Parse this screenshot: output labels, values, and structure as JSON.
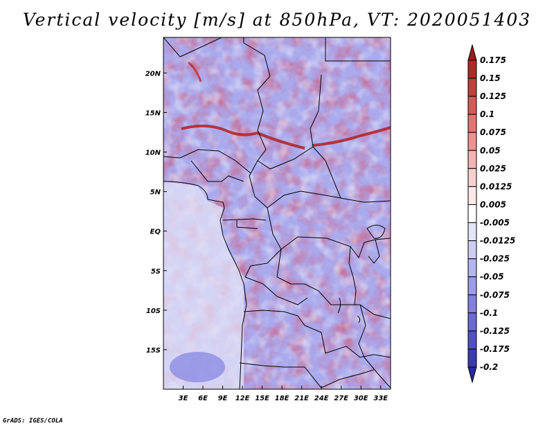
{
  "title": "Vertical velocity [m/s] at 850hPa, VT: 2020051403",
  "credit": "GrADS: IGES/COLA",
  "map": {
    "variable": "Vertical velocity",
    "units": "m/s",
    "level": "850hPa",
    "valid_time": "2020051403",
    "lat_ticks": [
      "20N",
      "15N",
      "10N",
      "5N",
      "EQ",
      "5S",
      "10S",
      "15S"
    ],
    "lon_ticks": [
      "3E",
      "6E",
      "9E",
      "12E",
      "15E",
      "18E",
      "21E",
      "24E",
      "27E",
      "30E",
      "33E"
    ],
    "lat_range": [
      -20,
      24.5
    ],
    "lon_range": [
      0,
      34.5
    ]
  },
  "colorbar": {
    "labels": [
      "0.175",
      "0.15",
      "0.125",
      "0.1",
      "0.075",
      "0.05",
      "0.025",
      "0.0125",
      "0.005",
      "-0.005",
      "-0.0125",
      "-0.025",
      "-0.05",
      "-0.075",
      "-0.1",
      "-0.125",
      "-0.175",
      "-0.2"
    ],
    "colors": [
      "#a01818",
      "#b42828",
      "#c83c3c",
      "#d85858",
      "#e47474",
      "#ec9292",
      "#f4b4b4",
      "#f8d0d0",
      "#fce8e8",
      "#ffffff",
      "#e4e4fa",
      "#cdcdf4",
      "#b4b4ee",
      "#9c9ce8",
      "#8282dc",
      "#6a6ad2",
      "#5050c4",
      "#3a3ab2",
      "#2828a0"
    ]
  }
}
